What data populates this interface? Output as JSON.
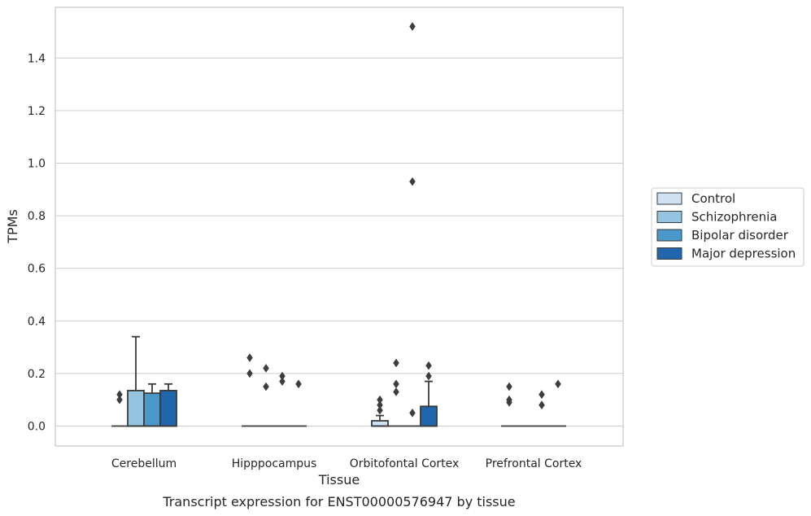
{
  "caption": "Transcript expression for ENST00000576947 by tissue",
  "colors": {
    "Control": "#d0e1f2",
    "Schizophrenia": "#94c4df",
    "Bipolar disorder": "#4a98c9",
    "Major depression": "#2166ac",
    "edge": "#3a3a3a",
    "grid": "#cccccc",
    "frame": "#c8c8c8"
  },
  "chart_data": {
    "type": "box",
    "title": "",
    "xlabel": "Tissue",
    "ylabel": "TPMs",
    "ylim": [
      -0.075,
      1.6
    ],
    "yticks": [
      0.0,
      0.2,
      0.4,
      0.6,
      0.8,
      1.0,
      1.2,
      1.4
    ],
    "ytick_labels": [
      "0.0",
      "0.2",
      "0.4",
      "0.6",
      "0.8",
      "1.0",
      "1.2",
      "1.4"
    ],
    "grid": "horizontal",
    "legend_position": "right",
    "categories": [
      "Cerebellum",
      "Hipppocampus",
      "Orbitofontal Cortex",
      "Prefrontal Cortex"
    ],
    "series": [
      {
        "name": "Control",
        "boxes": [
          {
            "q1": 0,
            "median": 0,
            "q3": 0,
            "whisker_low": 0,
            "whisker_high": 0,
            "outliers": [
              0.1,
              0.12
            ]
          },
          {
            "q1": 0,
            "median": 0,
            "q3": 0,
            "whisker_low": 0,
            "whisker_high": 0,
            "outliers": [
              0.2,
              0.26
            ]
          },
          {
            "q1": 0,
            "median": 0,
            "q3": 0.02,
            "whisker_low": 0,
            "whisker_high": 0.04,
            "outliers": [
              0.06,
              0.08,
              0.1
            ]
          },
          {
            "q1": 0,
            "median": 0,
            "q3": 0,
            "whisker_low": 0,
            "whisker_high": 0,
            "outliers": [
              0.09,
              0.1,
              0.15
            ]
          }
        ]
      },
      {
        "name": "Schizophrenia",
        "boxes": [
          {
            "q1": 0,
            "median": 0,
            "q3": 0.135,
            "whisker_low": 0,
            "whisker_high": 0.34,
            "outliers": []
          },
          {
            "q1": 0,
            "median": 0,
            "q3": 0,
            "whisker_low": 0,
            "whisker_high": 0,
            "outliers": [
              0.15,
              0.22
            ]
          },
          {
            "q1": 0,
            "median": 0,
            "q3": 0,
            "whisker_low": 0,
            "whisker_high": 0,
            "outliers": [
              0.13,
              0.16,
              0.24
            ]
          },
          {
            "q1": 0,
            "median": 0,
            "q3": 0,
            "whisker_low": 0,
            "whisker_high": 0,
            "outliers": []
          }
        ]
      },
      {
        "name": "Bipolar disorder",
        "boxes": [
          {
            "q1": 0,
            "median": 0,
            "q3": 0.125,
            "whisker_low": 0,
            "whisker_high": 0.16,
            "outliers": []
          },
          {
            "q1": 0,
            "median": 0,
            "q3": 0,
            "whisker_low": 0,
            "whisker_high": 0,
            "outliers": [
              0.17,
              0.19
            ]
          },
          {
            "q1": 0,
            "median": 0,
            "q3": 0,
            "whisker_low": 0,
            "whisker_high": 0,
            "outliers": [
              0.05,
              0.93,
              1.52
            ]
          },
          {
            "q1": 0,
            "median": 0,
            "q3": 0,
            "whisker_low": 0,
            "whisker_high": 0,
            "outliers": [
              0.08,
              0.12
            ]
          }
        ]
      },
      {
        "name": "Major depression",
        "boxes": [
          {
            "q1": 0,
            "median": 0,
            "q3": 0.135,
            "whisker_low": 0,
            "whisker_high": 0.16,
            "outliers": []
          },
          {
            "q1": 0,
            "median": 0,
            "q3": 0,
            "whisker_low": 0,
            "whisker_high": 0,
            "outliers": [
              0.16
            ]
          },
          {
            "q1": 0,
            "median": 0,
            "q3": 0.075,
            "whisker_low": 0,
            "whisker_high": 0.17,
            "outliers": [
              0.19,
              0.23
            ]
          },
          {
            "q1": 0,
            "median": 0,
            "q3": 0,
            "whisker_low": 0,
            "whisker_high": 0,
            "outliers": [
              0.16
            ]
          }
        ]
      }
    ]
  }
}
